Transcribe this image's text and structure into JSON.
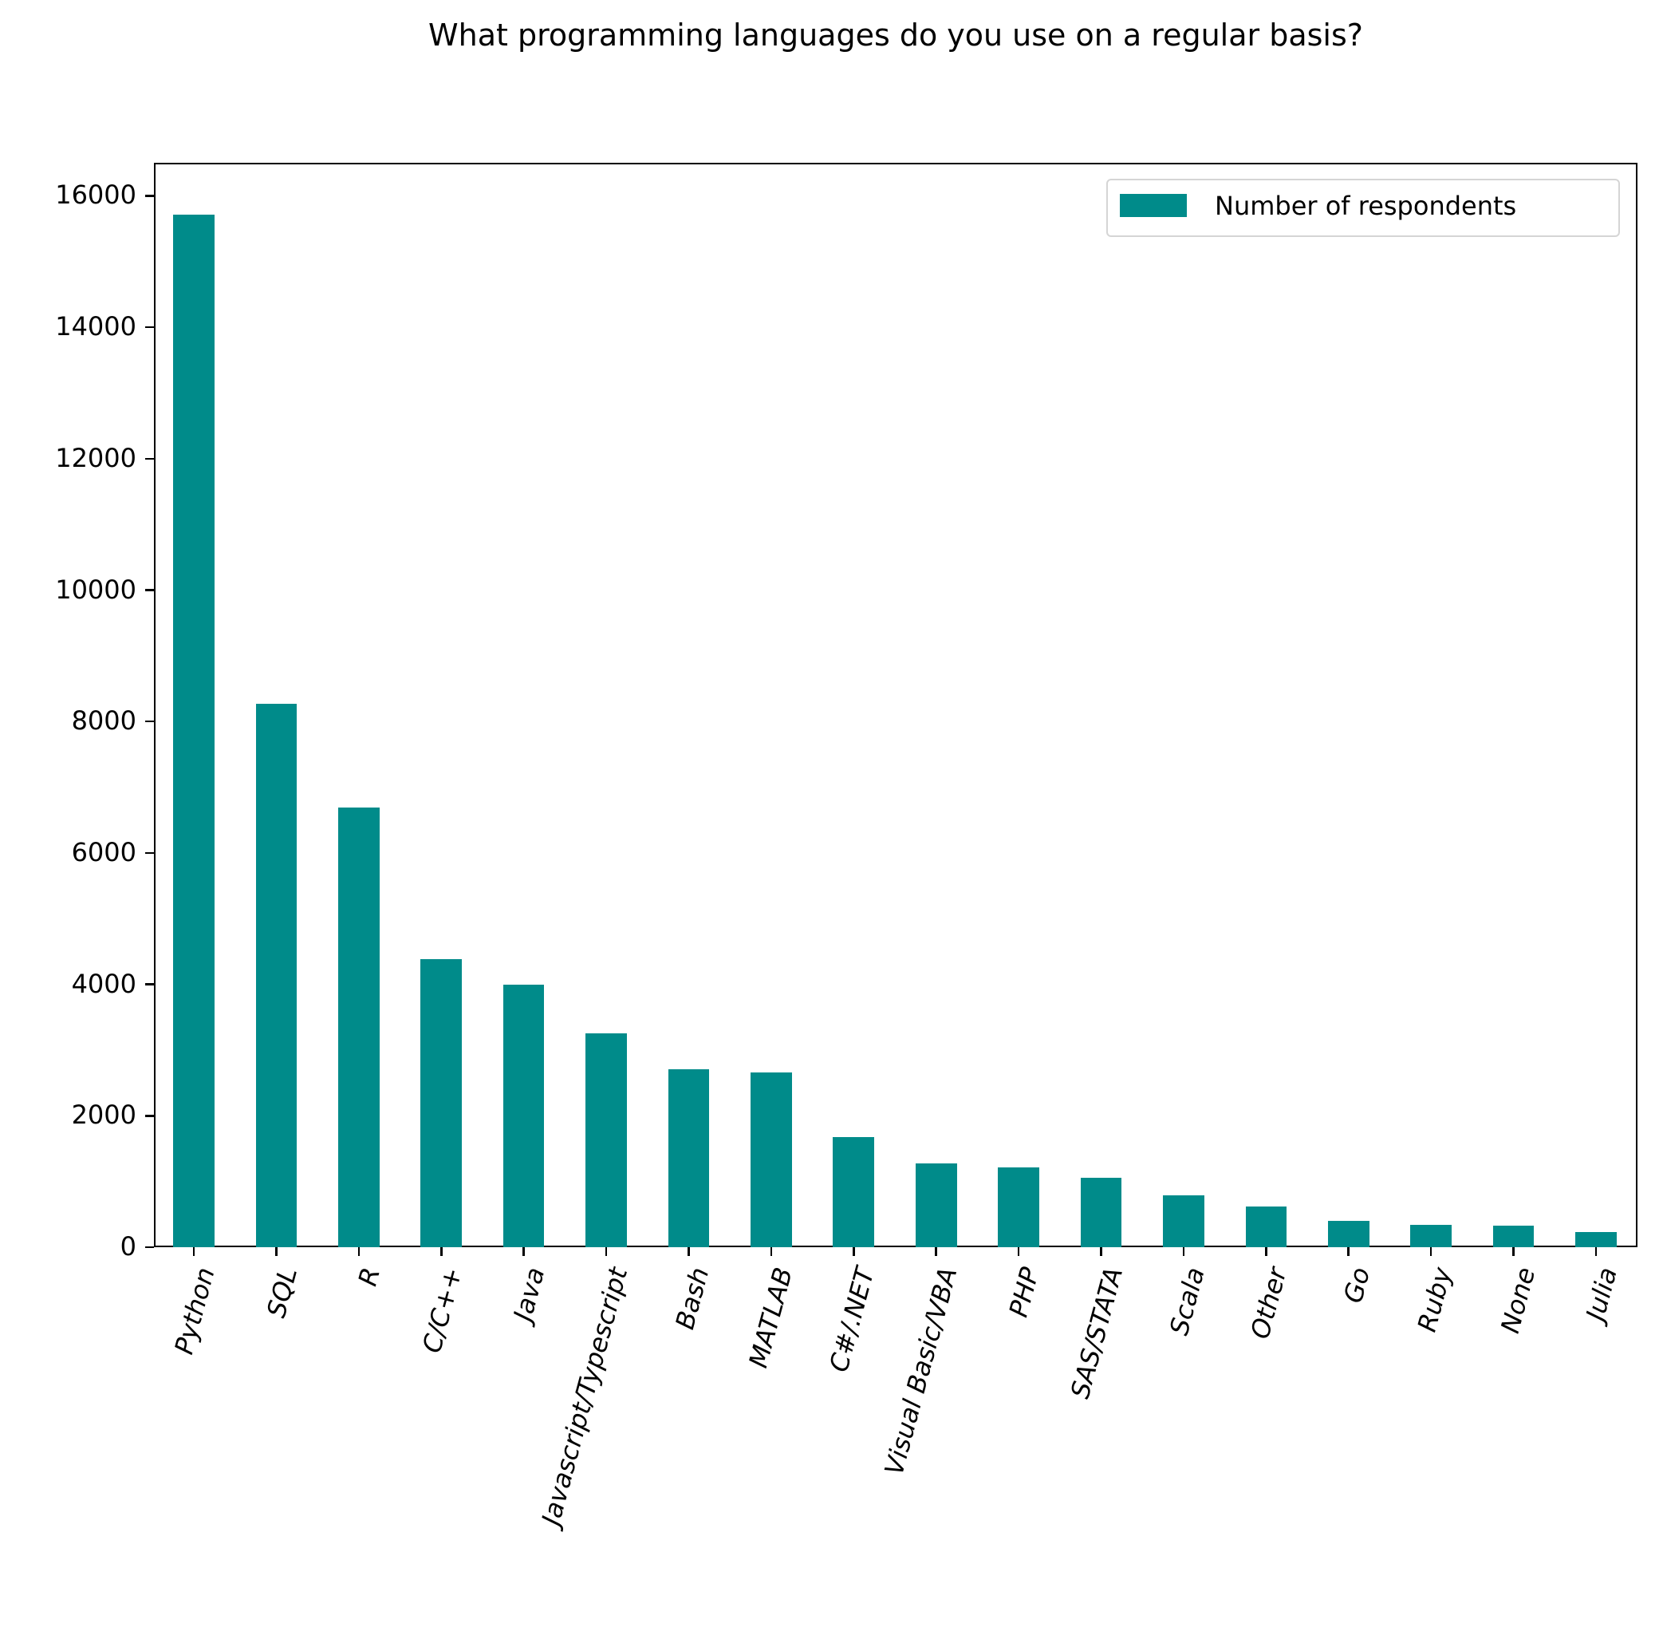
{
  "title": "What programming languages do you use on a regular basis?",
  "legend": {
    "label": "Number of respondents",
    "color": "#008b8a"
  },
  "y_ticks": [
    "0",
    "2000",
    "4000",
    "6000",
    "8000",
    "10000",
    "12000",
    "14000",
    "16000"
  ],
  "chart_data": {
    "type": "bar",
    "title": "What programming languages do you use on a regular basis?",
    "xlabel": "",
    "ylabel": "",
    "categories": [
      "Python",
      "SQL",
      "R",
      "C/C++",
      "Java",
      "Javascript/Typescript",
      "Bash",
      "MATLAB",
      "C#/.NET",
      "Visual Basic/VBA",
      "PHP",
      "SAS/STATA",
      "Scala",
      "Other",
      "Go",
      "Ruby",
      "None",
      "Julia"
    ],
    "series": [
      {
        "name": "Number of respondents",
        "values": [
          15711,
          8270,
          6691,
          4384,
          3995,
          3254,
          2708,
          2659,
          1676,
          1275,
          1214,
          1056,
          789,
          619,
          401,
          340,
          328,
          231
        ]
      }
    ],
    "ylim": [
      0,
      16500
    ],
    "yticks": [
      0,
      2000,
      4000,
      6000,
      8000,
      10000,
      12000,
      14000,
      16000
    ],
    "grid": false,
    "legend_position": "upper right",
    "bar_color": "#008b8a",
    "xtick_rotation": 75
  }
}
